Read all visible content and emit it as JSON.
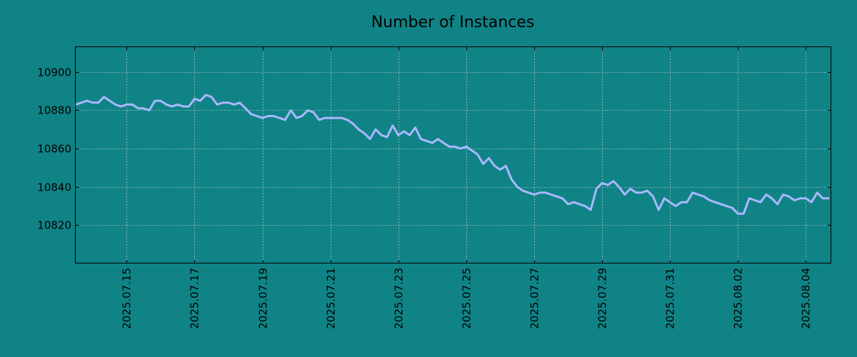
{
  "chart_data": {
    "type": "line",
    "title": "Number of Instances",
    "xlabel": "",
    "ylabel": "",
    "x_range": [
      "2025.07.13 12:00",
      "2025.08.04 18:00"
    ],
    "ylim": [
      10800,
      10913
    ],
    "yticks": [
      10820,
      10840,
      10860,
      10880,
      10900
    ],
    "xticks": [
      "2025.07.15",
      "2025.07.17",
      "2025.07.19",
      "2025.07.21",
      "2025.07.23",
      "2025.07.25",
      "2025.07.27",
      "2025.07.29",
      "2025.07.31",
      "2025.08.02",
      "2025.08.04"
    ],
    "grid": true,
    "colors": {
      "background": "#108386",
      "line": "#a9b8ff"
    },
    "series": [
      {
        "x": [
          "2025.07.13 12:00",
          "2025.07.13 16:00",
          "2025.07.13 20:00",
          "2025.07.14 00:00",
          "2025.07.14 04:00",
          "2025.07.14 08:00",
          "2025.07.14 12:00",
          "2025.07.14 16:00",
          "2025.07.14 20:00",
          "2025.07.15 00:00",
          "2025.07.15 04:00",
          "2025.07.15 08:00",
          "2025.07.15 12:00",
          "2025.07.15 16:00",
          "2025.07.15 20:00",
          "2025.07.16 00:00",
          "2025.07.16 04:00",
          "2025.07.16 08:00",
          "2025.07.16 12:00",
          "2025.07.16 16:00",
          "2025.07.16 20:00",
          "2025.07.17 00:00",
          "2025.07.17 04:00",
          "2025.07.17 08:00",
          "2025.07.17 12:00",
          "2025.07.17 16:00",
          "2025.07.17 20:00",
          "2025.07.18 00:00",
          "2025.07.18 04:00",
          "2025.07.18 08:00",
          "2025.07.18 12:00",
          "2025.07.18 16:00",
          "2025.07.18 20:00",
          "2025.07.19 00:00",
          "2025.07.19 04:00",
          "2025.07.19 08:00",
          "2025.07.19 12:00",
          "2025.07.19 16:00",
          "2025.07.19 20:00",
          "2025.07.20 00:00",
          "2025.07.20 04:00",
          "2025.07.20 08:00",
          "2025.07.20 12:00",
          "2025.07.20 16:00",
          "2025.07.20 20:00",
          "2025.07.21 00:00",
          "2025.07.21 04:00",
          "2025.07.21 08:00",
          "2025.07.21 12:00",
          "2025.07.21 16:00",
          "2025.07.21 20:00",
          "2025.07.22 00:00",
          "2025.07.22 04:00",
          "2025.07.22 08:00",
          "2025.07.22 12:00",
          "2025.07.22 16:00",
          "2025.07.22 20:00",
          "2025.07.23 00:00",
          "2025.07.23 04:00",
          "2025.07.23 08:00",
          "2025.07.23 12:00",
          "2025.07.23 16:00",
          "2025.07.23 20:00",
          "2025.07.24 00:00",
          "2025.07.24 04:00",
          "2025.07.24 08:00",
          "2025.07.24 12:00",
          "2025.07.24 16:00",
          "2025.07.24 20:00",
          "2025.07.25 00:00",
          "2025.07.25 04:00",
          "2025.07.25 08:00",
          "2025.07.25 12:00",
          "2025.07.25 16:00",
          "2025.07.25 20:00",
          "2025.07.26 00:00",
          "2025.07.26 04:00",
          "2025.07.26 08:00",
          "2025.07.26 12:00",
          "2025.07.26 16:00",
          "2025.07.26 20:00",
          "2025.07.27 00:00",
          "2025.07.27 04:00",
          "2025.07.27 08:00",
          "2025.07.27 12:00",
          "2025.07.27 16:00",
          "2025.07.27 20:00",
          "2025.07.28 00:00",
          "2025.07.28 04:00",
          "2025.07.28 08:00",
          "2025.07.28 12:00",
          "2025.07.28 16:00",
          "2025.07.28 20:00",
          "2025.07.29 00:00",
          "2025.07.29 04:00",
          "2025.07.29 08:00",
          "2025.07.29 12:00",
          "2025.07.29 16:00",
          "2025.07.29 20:00",
          "2025.07.30 00:00",
          "2025.07.30 04:00",
          "2025.07.30 08:00",
          "2025.07.30 12:00",
          "2025.07.30 16:00",
          "2025.07.30 20:00",
          "2025.07.31 00:00",
          "2025.07.31 04:00",
          "2025.07.31 08:00",
          "2025.07.31 12:00",
          "2025.07.31 16:00",
          "2025.07.31 20:00",
          "2025.08.01 00:00",
          "2025.08.01 04:00",
          "2025.08.01 08:00",
          "2025.08.01 12:00",
          "2025.08.01 16:00",
          "2025.08.01 20:00",
          "2025.08.02 00:00",
          "2025.08.02 04:00",
          "2025.08.02 08:00",
          "2025.08.02 12:00",
          "2025.08.02 16:00",
          "2025.08.02 20:00",
          "2025.08.03 00:00",
          "2025.08.03 04:00",
          "2025.08.03 08:00",
          "2025.08.03 12:00",
          "2025.08.03 16:00",
          "2025.08.03 20:00",
          "2025.08.04 00:00",
          "2025.08.04 04:00",
          "2025.08.04 08:00",
          "2025.08.04 12:00",
          "2025.08.04 16:00"
        ],
        "y": [
          10883,
          10884,
          10885,
          10884,
          10884,
          10887,
          10885,
          10883,
          10882,
          10883,
          10883,
          10881,
          10881,
          10880,
          10885,
          10885,
          10883,
          10882,
          10883,
          10882,
          10882,
          10886,
          10885,
          10888,
          10887,
          10883,
          10884,
          10884,
          10883,
          10884,
          10881,
          10878,
          10877,
          10876,
          10877,
          10877,
          10876,
          10875,
          10880,
          10876,
          10877,
          10880,
          10879,
          10875,
          10876,
          10876,
          10876,
          10876,
          10875,
          10873,
          10870,
          10868,
          10865,
          10870,
          10867,
          10866,
          10872,
          10867,
          10869,
          10867,
          10871,
          10865,
          10864,
          10863,
          10865,
          10863,
          10861,
          10861,
          10860,
          10861,
          10859,
          10857,
          10852,
          10855,
          10851,
          10849,
          10851,
          10844,
          10840,
          10838,
          10837,
          10836,
          10837,
          10837,
          10836,
          10835,
          10834,
          10831,
          10832,
          10831,
          10830,
          10828,
          10839,
          10842,
          10841,
          10843,
          10840,
          10836,
          10839,
          10837,
          10837,
          10838,
          10835,
          10828,
          10834,
          10832,
          10830,
          10832,
          10832,
          10837,
          10836,
          10835,
          10833,
          10832,
          10831,
          10830,
          10829,
          10826,
          10826,
          10834,
          10833,
          10832,
          10836,
          10834,
          10831,
          10836,
          10835,
          10833,
          10834,
          10834,
          10832,
          10837,
          10834,
          10834
        ]
      }
    ]
  }
}
